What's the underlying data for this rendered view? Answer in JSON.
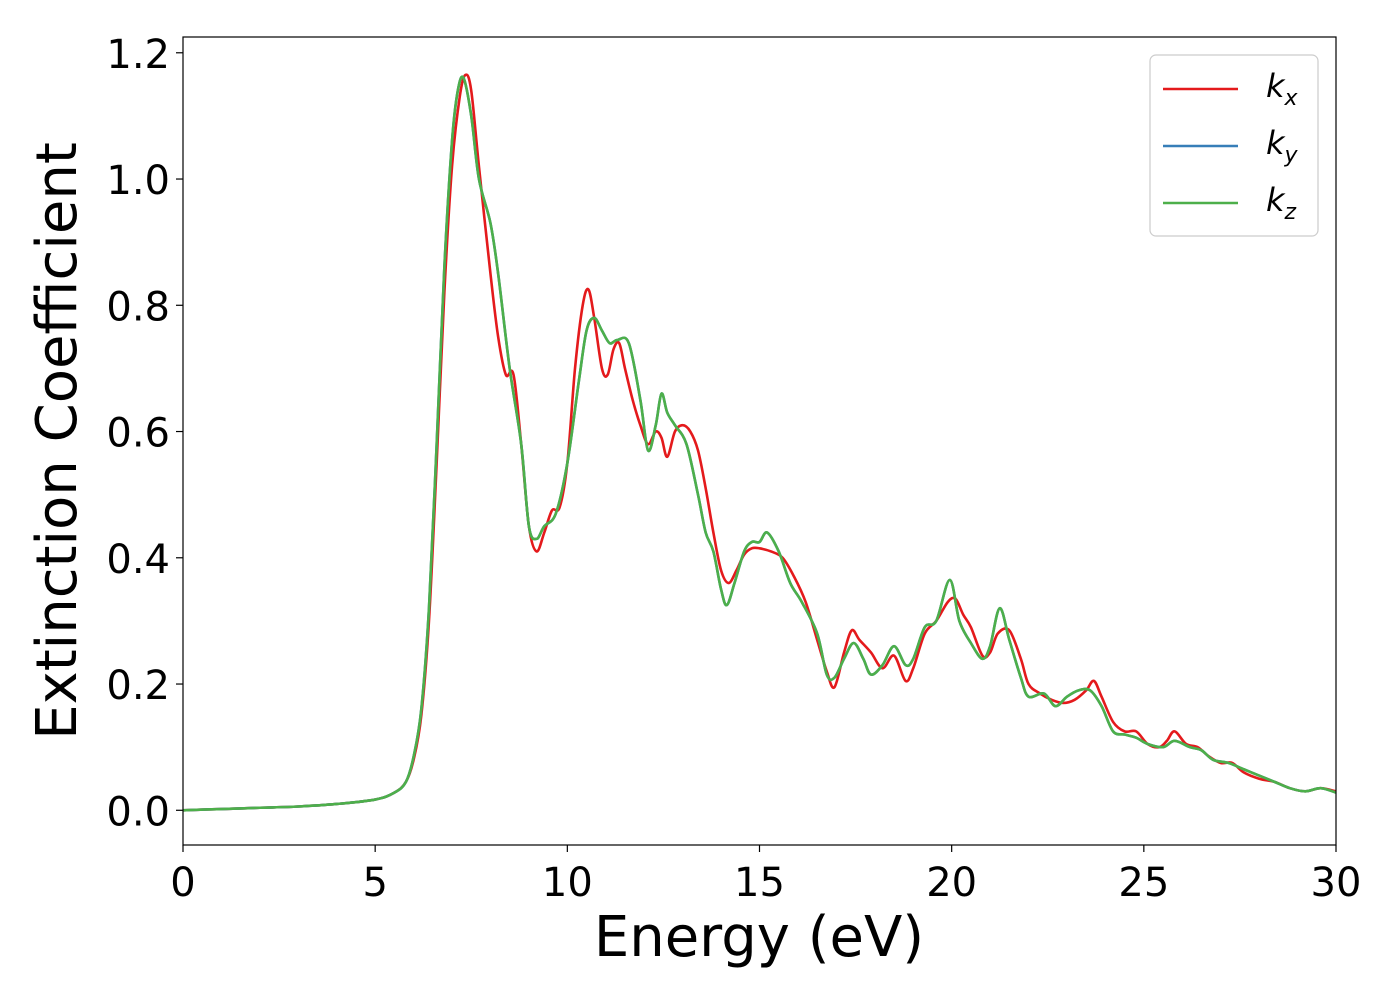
{
  "chart_data": {
    "type": "line",
    "xlabel": "Energy (eV)",
    "ylabel": "Extinction Coefficient",
    "xlim": [
      0,
      30
    ],
    "ylim": [
      -0.055,
      1.225
    ],
    "xticks": [
      "0",
      "5",
      "10",
      "15",
      "20",
      "25",
      "30"
    ],
    "yticks": [
      "0.0",
      "0.2",
      "0.4",
      "0.6",
      "0.8",
      "1.0",
      "1.2"
    ],
    "grid": false,
    "legend_placement": "top-right",
    "series": [
      {
        "name": "k_x",
        "label_base": "k",
        "label_sub": "x",
        "color": "#e41a1c",
        "x": [
          0,
          1,
          2,
          3,
          4,
          5,
          5.5,
          5.8,
          6.0,
          6.2,
          6.4,
          6.6,
          6.8,
          7.0,
          7.2,
          7.35,
          7.5,
          7.7,
          8.0,
          8.2,
          8.4,
          8.6,
          8.8,
          9.0,
          9.2,
          9.4,
          9.6,
          9.8,
          10.0,
          10.2,
          10.4,
          10.55,
          10.7,
          10.9,
          11.05,
          11.2,
          11.35,
          11.5,
          11.7,
          11.9,
          12.1,
          12.3,
          12.45,
          12.6,
          12.8,
          13.0,
          13.2,
          13.4,
          13.6,
          13.8,
          14.0,
          14.2,
          14.4,
          14.6,
          14.8,
          15.0,
          15.3,
          15.6,
          15.9,
          16.2,
          16.5,
          16.75,
          16.95,
          17.2,
          17.4,
          17.6,
          17.9,
          18.2,
          18.5,
          18.8,
          19.0,
          19.3,
          19.6,
          19.9,
          20.1,
          20.3,
          20.5,
          20.8,
          21.0,
          21.2,
          21.5,
          21.8,
          22.0,
          22.3,
          22.6,
          22.9,
          23.2,
          23.5,
          23.7,
          23.9,
          24.2,
          24.5,
          24.8,
          25.1,
          25.4,
          25.6,
          25.8,
          26.1,
          26.4,
          26.7,
          27.0,
          27.3,
          27.6,
          28.0,
          28.4,
          28.8,
          29.2,
          29.6,
          30.0
        ],
        "y": [
          0.0,
          0.002,
          0.004,
          0.006,
          0.01,
          0.017,
          0.028,
          0.045,
          0.08,
          0.15,
          0.3,
          0.55,
          0.82,
          1.02,
          1.13,
          1.165,
          1.14,
          1.02,
          0.85,
          0.75,
          0.69,
          0.69,
          0.58,
          0.45,
          0.41,
          0.44,
          0.475,
          0.48,
          0.55,
          0.7,
          0.8,
          0.825,
          0.78,
          0.7,
          0.69,
          0.73,
          0.74,
          0.7,
          0.65,
          0.61,
          0.58,
          0.6,
          0.59,
          0.56,
          0.6,
          0.61,
          0.6,
          0.57,
          0.51,
          0.44,
          0.38,
          0.36,
          0.38,
          0.405,
          0.415,
          0.415,
          0.41,
          0.4,
          0.37,
          0.33,
          0.27,
          0.22,
          0.195,
          0.25,
          0.285,
          0.27,
          0.25,
          0.225,
          0.245,
          0.205,
          0.225,
          0.28,
          0.3,
          0.33,
          0.335,
          0.31,
          0.29,
          0.245,
          0.25,
          0.28,
          0.285,
          0.24,
          0.2,
          0.185,
          0.175,
          0.17,
          0.175,
          0.19,
          0.205,
          0.18,
          0.14,
          0.125,
          0.125,
          0.105,
          0.1,
          0.11,
          0.125,
          0.105,
          0.1,
          0.085,
          0.075,
          0.075,
          0.06,
          0.05,
          0.045,
          0.035,
          0.03,
          0.035,
          0.03
        ]
      },
      {
        "name": "k_y",
        "label_base": "k",
        "label_sub": "y",
        "color": "#377eb8",
        "x": [
          0,
          1,
          2,
          3,
          4,
          5,
          5.5,
          5.8,
          6.0,
          6.2,
          6.4,
          6.6,
          6.8,
          7.0,
          7.15,
          7.3,
          7.5,
          7.7,
          8.0,
          8.2,
          8.5,
          8.8,
          9.0,
          9.2,
          9.4,
          9.7,
          10.0,
          10.3,
          10.5,
          10.7,
          10.9,
          11.1,
          11.3,
          11.6,
          11.9,
          12.1,
          12.3,
          12.45,
          12.6,
          12.8,
          13.1,
          13.4,
          13.6,
          13.8,
          14.0,
          14.15,
          14.35,
          14.6,
          14.8,
          15.0,
          15.2,
          15.5,
          15.8,
          16.1,
          16.5,
          16.75,
          16.95,
          17.2,
          17.45,
          17.7,
          17.9,
          18.2,
          18.5,
          18.8,
          19.0,
          19.3,
          19.6,
          19.95,
          20.2,
          20.5,
          20.8,
          21.0,
          21.25,
          21.5,
          21.8,
          22.0,
          22.4,
          22.7,
          23.0,
          23.3,
          23.6,
          23.9,
          24.2,
          24.5,
          24.8,
          25.1,
          25.5,
          25.8,
          26.2,
          26.5,
          26.8,
          27.2,
          27.6,
          28.0,
          28.4,
          28.8,
          29.2,
          29.6,
          30.0
        ],
        "y": [
          0.0,
          0.002,
          0.004,
          0.006,
          0.01,
          0.017,
          0.028,
          0.045,
          0.085,
          0.16,
          0.32,
          0.58,
          0.86,
          1.06,
          1.14,
          1.16,
          1.1,
          1.0,
          0.93,
          0.85,
          0.7,
          0.58,
          0.45,
          0.43,
          0.45,
          0.47,
          0.55,
          0.68,
          0.76,
          0.78,
          0.76,
          0.74,
          0.745,
          0.74,
          0.65,
          0.57,
          0.61,
          0.66,
          0.63,
          0.61,
          0.58,
          0.5,
          0.44,
          0.41,
          0.35,
          0.325,
          0.36,
          0.41,
          0.425,
          0.425,
          0.44,
          0.41,
          0.36,
          0.33,
          0.28,
          0.215,
          0.21,
          0.24,
          0.265,
          0.24,
          0.215,
          0.23,
          0.26,
          0.23,
          0.24,
          0.29,
          0.3,
          0.365,
          0.3,
          0.265,
          0.24,
          0.26,
          0.32,
          0.27,
          0.21,
          0.18,
          0.185,
          0.165,
          0.18,
          0.19,
          0.19,
          0.165,
          0.125,
          0.12,
          0.115,
          0.105,
          0.1,
          0.11,
          0.1,
          0.095,
          0.08,
          0.075,
          0.065,
          0.055,
          0.045,
          0.035,
          0.03,
          0.035,
          0.028
        ]
      },
      {
        "name": "k_z",
        "label_base": "k",
        "label_sub": "z",
        "color": "#4daf4a",
        "x": [
          0,
          1,
          2,
          3,
          4,
          5,
          5.5,
          5.8,
          6.0,
          6.2,
          6.4,
          6.6,
          6.8,
          7.0,
          7.15,
          7.3,
          7.5,
          7.7,
          8.0,
          8.2,
          8.5,
          8.8,
          9.0,
          9.2,
          9.4,
          9.7,
          10.0,
          10.3,
          10.5,
          10.7,
          10.9,
          11.1,
          11.3,
          11.6,
          11.9,
          12.1,
          12.3,
          12.45,
          12.6,
          12.8,
          13.1,
          13.4,
          13.6,
          13.8,
          14.0,
          14.15,
          14.35,
          14.6,
          14.8,
          15.0,
          15.2,
          15.5,
          15.8,
          16.1,
          16.5,
          16.75,
          16.95,
          17.2,
          17.45,
          17.7,
          17.9,
          18.2,
          18.5,
          18.8,
          19.0,
          19.3,
          19.6,
          19.95,
          20.2,
          20.5,
          20.8,
          21.0,
          21.25,
          21.5,
          21.8,
          22.0,
          22.4,
          22.7,
          23.0,
          23.3,
          23.6,
          23.9,
          24.2,
          24.5,
          24.8,
          25.1,
          25.5,
          25.8,
          26.2,
          26.5,
          26.8,
          27.2,
          27.6,
          28.0,
          28.4,
          28.8,
          29.2,
          29.6,
          30.0
        ],
        "y": [
          0.0,
          0.002,
          0.004,
          0.006,
          0.01,
          0.017,
          0.028,
          0.045,
          0.085,
          0.16,
          0.32,
          0.58,
          0.86,
          1.06,
          1.14,
          1.16,
          1.1,
          1.0,
          0.93,
          0.85,
          0.7,
          0.58,
          0.45,
          0.43,
          0.45,
          0.47,
          0.55,
          0.68,
          0.76,
          0.78,
          0.76,
          0.74,
          0.745,
          0.74,
          0.65,
          0.57,
          0.61,
          0.66,
          0.63,
          0.61,
          0.58,
          0.5,
          0.44,
          0.41,
          0.35,
          0.325,
          0.36,
          0.41,
          0.425,
          0.425,
          0.44,
          0.41,
          0.36,
          0.33,
          0.28,
          0.215,
          0.21,
          0.24,
          0.265,
          0.24,
          0.215,
          0.23,
          0.26,
          0.23,
          0.24,
          0.29,
          0.3,
          0.365,
          0.3,
          0.265,
          0.24,
          0.26,
          0.32,
          0.27,
          0.21,
          0.18,
          0.185,
          0.165,
          0.18,
          0.19,
          0.19,
          0.165,
          0.125,
          0.12,
          0.115,
          0.105,
          0.1,
          0.11,
          0.1,
          0.095,
          0.08,
          0.075,
          0.065,
          0.055,
          0.045,
          0.035,
          0.03,
          0.035,
          0.028
        ]
      }
    ]
  }
}
